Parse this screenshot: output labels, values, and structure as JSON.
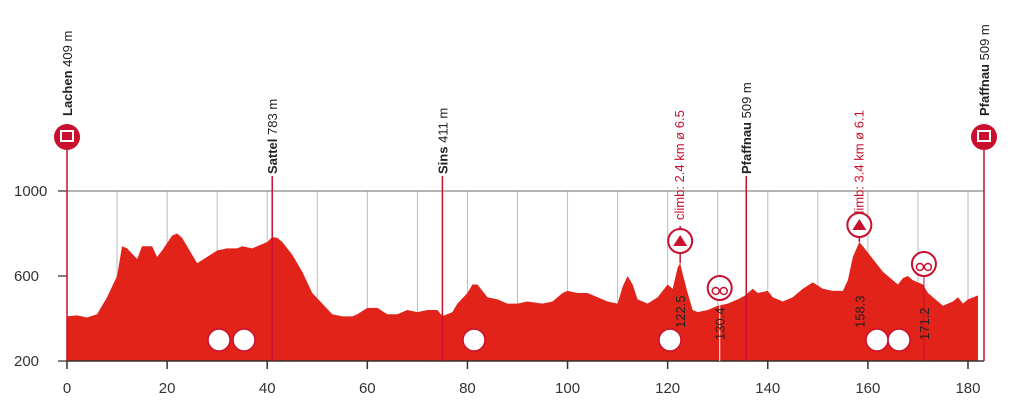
{
  "chart_data": {
    "type": "area",
    "color": "#e2231a",
    "xlim": [
      0,
      183.2
    ],
    "ylim": [
      200,
      1000
    ],
    "xticks": [
      0,
      20,
      40,
      60,
      80,
      100,
      120,
      140,
      160,
      180
    ],
    "yticks": [
      200,
      600,
      1000
    ],
    "x": [
      0,
      2,
      4,
      6,
      8,
      10,
      11,
      12,
      14,
      15,
      17,
      18,
      19,
      21,
      22,
      23,
      25,
      26,
      28,
      30,
      32,
      34,
      35,
      37,
      38,
      40,
      41,
      42,
      43,
      45,
      47,
      49,
      51,
      53,
      55,
      57,
      58,
      60,
      62,
      64,
      66,
      68,
      70,
      72,
      74,
      75,
      77,
      78,
      80,
      81,
      82,
      84,
      86,
      88,
      90,
      92,
      95,
      97,
      99,
      100,
      102,
      104,
      106,
      108,
      110,
      111,
      112,
      113,
      114,
      116,
      118,
      120,
      121,
      122,
      122.5,
      123,
      124,
      125,
      126,
      128,
      130,
      132,
      134,
      135.5,
      137,
      138,
      140,
      141,
      143,
      145,
      147,
      149,
      151,
      153,
      155,
      156,
      157,
      158.3,
      159,
      161,
      163,
      165,
      166,
      167,
      168,
      169,
      171,
      172,
      174,
      175,
      177,
      178,
      179,
      180,
      182
    ],
    "values": [
      410,
      415,
      405,
      420,
      500,
      600,
      740,
      730,
      680,
      740,
      740,
      690,
      720,
      790,
      800,
      780,
      700,
      660,
      690,
      720,
      730,
      730,
      740,
      730,
      740,
      760,
      783,
      780,
      760,
      700,
      620,
      520,
      470,
      420,
      410,
      410,
      420,
      450,
      450,
      420,
      420,
      440,
      430,
      440,
      440,
      411,
      430,
      470,
      520,
      560,
      560,
      500,
      490,
      470,
      470,
      480,
      470,
      480,
      520,
      530,
      520,
      520,
      500,
      480,
      470,
      550,
      600,
      560,
      490,
      470,
      500,
      560,
      540,
      640,
      660,
      610,
      520,
      440,
      430,
      440,
      460,
      470,
      490,
      509,
      540,
      520,
      530,
      500,
      480,
      500,
      540,
      570,
      540,
      530,
      530,
      580,
      690,
      760,
      740,
      680,
      620,
      580,
      560,
      590,
      600,
      580,
      560,
      520,
      480,
      460,
      480,
      500,
      470,
      490,
      509
    ],
    "places": [
      {
        "x": 0,
        "name": "Lachen",
        "elevation": "409 m"
      },
      {
        "x": 41,
        "name": "Sattel",
        "elevation": "783 m"
      },
      {
        "x": 75,
        "name": "Sins",
        "elevation": "411 m"
      },
      {
        "x": 135.7,
        "name": "Pfaffnau",
        "elevation": "509 m"
      },
      {
        "x": 183.2,
        "name": "Pfaffnau",
        "elevation": "509 m"
      }
    ],
    "climbs": [
      {
        "x": 122.5,
        "label": "climb: 2.4 km ø 6.5",
        "km": "122.5"
      },
      {
        "x": 158.3,
        "label": "climb: 3.4 km ø 6.1",
        "km": "158.3"
      }
    ],
    "sprints": [
      {
        "x": 130.4,
        "km": "130.4"
      },
      {
        "x": 171.2,
        "km": "171.2"
      }
    ]
  }
}
